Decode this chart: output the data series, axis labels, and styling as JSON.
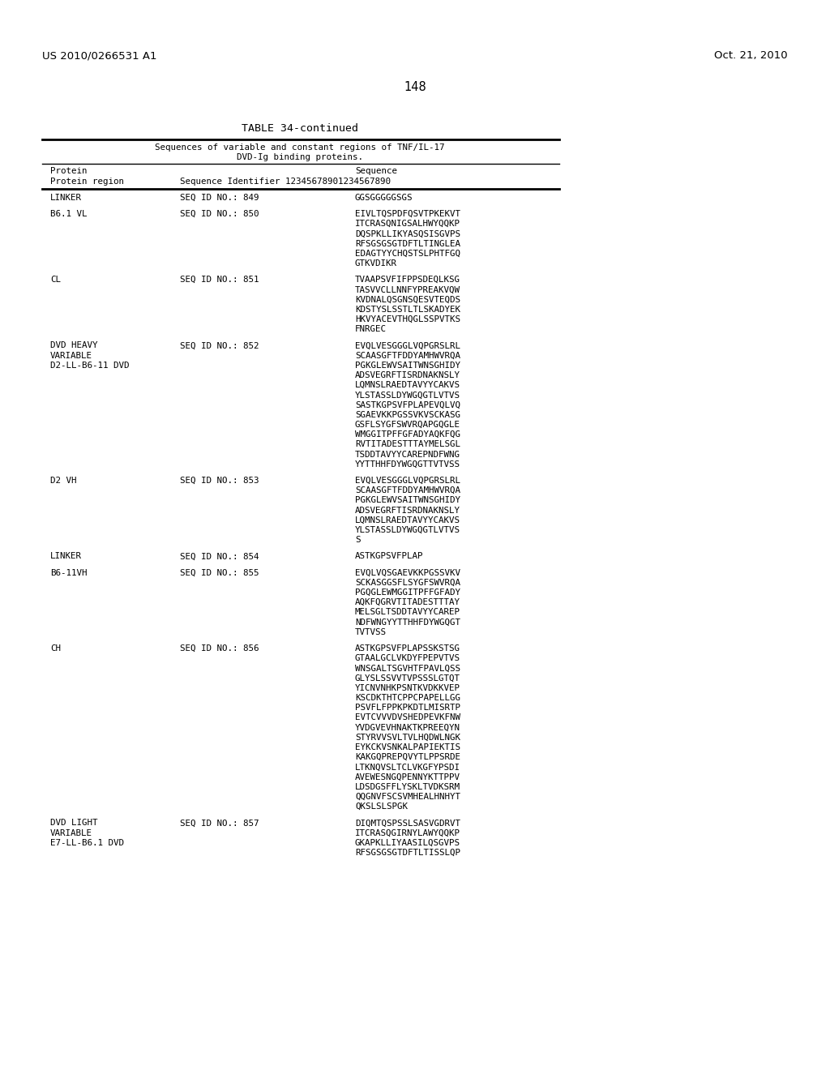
{
  "background_color": "#ffffff",
  "header_left": "US 2010/0266531 A1",
  "header_right": "Oct. 21, 2010",
  "page_number": "148",
  "table_title": "TABLE 34-continued",
  "table_subtitle1": "Sequences of variable and constant regions of TNF/IL-17",
  "table_subtitle2": "DVD-Ig binding proteins.",
  "rows": [
    {
      "protein": "LINKER",
      "seq_id": "SEQ ID NO.: 849",
      "sequence": "GGSGGGGGSGS"
    },
    {
      "protein": "B6.1 VL",
      "seq_id": "SEQ ID NO.: 850",
      "sequence": "EIVLTQSPDFQSVTPKEKVT\nITCRASQNIGSALHWYQQKP\nDQSPKLLIKYASQSISGVPS\nRFSGSGSGTDFTLTINGLEA\nEDAGTYYCHQSTSLPHTFGQ\nGTKVDIKR"
    },
    {
      "protein": "CL",
      "seq_id": "SEQ ID NO.: 851",
      "sequence": "TVAAPSVFIFPPSDEQLKSG\nTASVVCLLNNFYPREAKVQW\nKVDNALQSGNSQESVTEQDS\nKDSTYSLSSTLTLSKADYEK\nHKVYACEVTHQGLSSPVTKS\nFNRGEC"
    },
    {
      "protein": "DVD HEAVY\nVARIABLE\nD2-LL-B6-11 DVD",
      "seq_id": "SEQ ID NO.: 852",
      "sequence": "EVQLVESGGGLVQPGRSLRL\nSCAASGFTFDDYAMHWVRQA\nPGKGLEWVSAITWNSGHIDY\nADSVEGRFTISRDNAKNSLY\nLQMNSLRAEDTAVYYCAKVS\nYLSTASSLDYWGQGTLVTVS\nSASTKGPSVFPLAPEVQLVQ\nSGAEVKKPGSSVKVSCKASG\nGSFLSYGFSWVRQAPGQGLE\nWMGGITPFFGFADYAQKFQG\nRVTITADESTTTAYMELSGL\nTSDDTAVYYCAREPNDFWNG\nYYTTHHFDYWGQGTTVTVSS"
    },
    {
      "protein": "D2 VH",
      "seq_id": "SEQ ID NO.: 853",
      "sequence": "EVQLVESGGGLVQPGRSLRL\nSCAASGFTFDDYAMHWVRQA\nPGKGLEWVSAITWNSGHIDY\nADSVEGRFTISRDNAKNSLY\nLQMNSLRAEDTAVYYCAKVS\nYLSTASSLDYWGQGTLVTVS\nS"
    },
    {
      "protein": "LINKER",
      "seq_id": "SEQ ID NO.: 854",
      "sequence": "ASTKGPSVFPLAP"
    },
    {
      "protein": "B6-11VH",
      "seq_id": "SEQ ID NO.: 855",
      "sequence": "EVQLVQSGAEVKKPGSSVKV\nSCKASGGSFLSYGFSWVRQA\nPGQGLEWMGGITPFFGFADY\nAQKFQGRVTITADESTTTAY\nMELSGLTSDDTAVYYCAREP\nNDFWNGYYTTHHFDYWGQGT\nTVTVSS"
    },
    {
      "protein": "CH",
      "seq_id": "SEQ ID NO.: 856",
      "sequence": "ASTKGPSVFPLAPSSKSTSG\nGTAALGCLVKDYFPEPVTVS\nWNSGALTSGVHTFPAVLQSS\nGLYSLSSVVTVPSSSLGTQT\nYICNVNHKPSNTKVDKKVEP\nKSCDKTHTCPPCPAPELLGG\nPSVFLFPPKPKDTLMISRTP\nEVTCVVVDVSHEDPEVKFNW\nYVDGVEVHNAKTKPREEQYN\nSTYRVVSVLTVLHQDWLNGK\nEYKCKVSNKALPAPIEKTIS\nKAKGQPREPQVYTLPPSRDE\nLTKNQVSLTCLVKGFYPSDI\nAVEWESNGQPENNYKTTPPV\nLDSDGSFFLYSKLTVDKSRM\nQQGNVFSCSVMHEALHNHYT\nQKSLSLSPGK"
    },
    {
      "protein": "DVD LIGHT\nVARIABLE\nE7-LL-B6.1 DVD",
      "seq_id": "SEQ ID NO.: 857",
      "sequence": "DIQMTQSPSSLSASVGDRVT\nITCRASQGIRNYLAWYQQKP\nGKAPKLLIYAASILQSGVPS\nRFSGSGSGTDFTLTISSLQP"
    }
  ]
}
